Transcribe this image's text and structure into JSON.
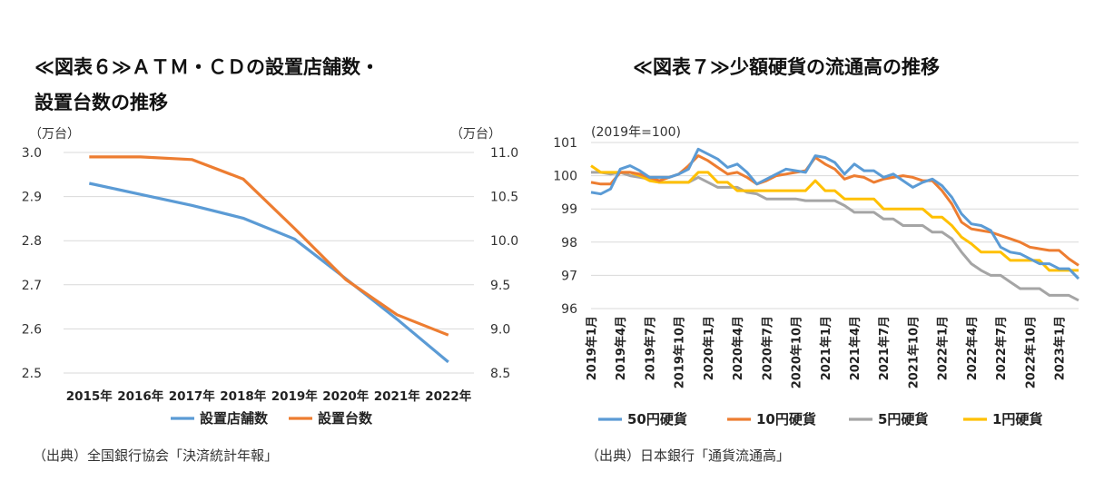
{
  "chart_data": [
    {
      "type": "line",
      "title_lines": [
        "≪図表６≫ＡＴＭ・ＣＤの設置店舗数・",
        "設置台数の推移"
      ],
      "left_unit": "（万台）",
      "right_unit": "（万台）",
      "categories": [
        "2015年",
        "2016年",
        "2017年",
        "2018年",
        "2019年",
        "2020年",
        "2021年",
        "2022年"
      ],
      "y_left": {
        "min": 2.5,
        "max": 3.0,
        "ticks": [
          "3.0",
          "2.9",
          "2.8",
          "2.7",
          "2.6",
          "2.5"
        ]
      },
      "y_right": {
        "min": 8.5,
        "max": 11.0,
        "ticks": [
          "11.0",
          "10.5",
          "10.0",
          "9.5",
          "9.0",
          "8.5"
        ]
      },
      "grid": true,
      "legend_position": "bottom",
      "series": [
        {
          "name": "設置店舗数",
          "axis": "left",
          "color": "#5B9BD5",
          "values": [
            2.93,
            2.905,
            2.88,
            2.851,
            2.804,
            2.714,
            2.622,
            2.525
          ]
        },
        {
          "name": "設置台数",
          "axis": "right",
          "color": "#ED7D31",
          "values": [
            10.95,
            10.95,
            10.92,
            10.7,
            10.14,
            9.56,
            9.16,
            8.93
          ]
        }
      ],
      "source": "（出典）全国銀行協会「決済統計年報」"
    },
    {
      "type": "line",
      "title": "≪図表７≫少額硬貨の流通高の推移",
      "unit": "(2019年=100)",
      "x_labels": [
        "2019年1月",
        "2019年4月",
        "2019年7月",
        "2019年10月",
        "2020年1月",
        "2020年4月",
        "2020年7月",
        "2020年10月",
        "2021年1月",
        "2021年4月",
        "2021年7月",
        "2021年10月",
        "2022年1月",
        "2022年4月",
        "2022年7月",
        "2022年10月",
        "2023年1月"
      ],
      "y": {
        "min": 96,
        "max": 101,
        "ticks": [
          "101",
          "100",
          "99",
          "98",
          "97",
          "96"
        ]
      },
      "grid": true,
      "legend_position": "bottom",
      "series": [
        {
          "name": "50円硬貨",
          "color": "#5B9BD5",
          "values": [
            99.5,
            99.45,
            99.6,
            100.2,
            100.3,
            100.15,
            99.95,
            99.95,
            99.95,
            100.05,
            100.2,
            100.8,
            100.65,
            100.5,
            100.25,
            100.35,
            100.1,
            99.75,
            99.9,
            100.05,
            100.2,
            100.15,
            100.1,
            100.6,
            100.55,
            100.4,
            100.05,
            100.35,
            100.15,
            100.15,
            99.95,
            100.05,
            99.85,
            99.65,
            99.8,
            99.9,
            99.7,
            99.35,
            98.85,
            98.55,
            98.5,
            98.35,
            97.85,
            97.7,
            97.65,
            97.5,
            97.35,
            97.35,
            97.2,
            97.2,
            96.9
          ]
        },
        {
          "name": "10円硬貨",
          "color": "#ED7D31",
          "values": [
            99.8,
            99.75,
            99.75,
            100.1,
            100.1,
            100.05,
            99.95,
            99.85,
            99.95,
            100.05,
            100.3,
            100.6,
            100.45,
            100.25,
            100.05,
            100.1,
            99.95,
            99.75,
            99.85,
            100.0,
            100.05,
            100.1,
            100.15,
            100.55,
            100.35,
            100.2,
            99.9,
            100.0,
            99.95,
            99.8,
            99.9,
            99.95,
            100.0,
            99.95,
            99.85,
            99.85,
            99.55,
            99.15,
            98.6,
            98.4,
            98.35,
            98.3,
            98.2,
            98.1,
            98.0,
            97.85,
            97.8,
            97.75,
            97.75,
            97.5,
            97.3
          ]
        },
        {
          "name": "5円硬貨",
          "color": "#A5A5A5",
          "values": [
            100.1,
            100.1,
            100.05,
            100.1,
            100.0,
            99.95,
            99.9,
            99.8,
            99.8,
            99.8,
            99.8,
            99.95,
            99.8,
            99.65,
            99.65,
            99.65,
            99.5,
            99.45,
            99.3,
            99.3,
            99.3,
            99.3,
            99.25,
            99.25,
            99.25,
            99.25,
            99.1,
            98.9,
            98.9,
            98.9,
            98.7,
            98.7,
            98.5,
            98.5,
            98.5,
            98.3,
            98.3,
            98.1,
            97.7,
            97.35,
            97.15,
            97.0,
            97.0,
            96.8,
            96.6,
            96.6,
            96.6,
            96.4,
            96.4,
            96.4,
            96.25
          ]
        },
        {
          "name": "1円硬貨",
          "color": "#FFC000",
          "values": [
            100.3,
            100.1,
            100.1,
            100.1,
            100.1,
            100.0,
            99.85,
            99.8,
            99.8,
            99.8,
            99.8,
            100.1,
            100.1,
            99.8,
            99.8,
            99.55,
            99.55,
            99.55,
            99.55,
            99.55,
            99.55,
            99.55,
            99.55,
            99.85,
            99.55,
            99.55,
            99.3,
            99.3,
            99.3,
            99.3,
            99.0,
            99.0,
            99.0,
            99.0,
            99.0,
            98.75,
            98.75,
            98.5,
            98.15,
            97.95,
            97.7,
            97.7,
            97.7,
            97.45,
            97.45,
            97.45,
            97.45,
            97.15,
            97.15,
            97.15,
            97.15
          ]
        }
      ],
      "source": "（出典）日本銀行「通貨流通高」"
    }
  ]
}
